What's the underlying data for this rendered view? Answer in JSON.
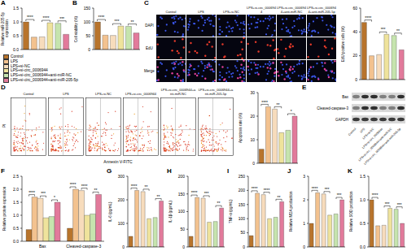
{
  "groups": [
    {
      "name": "Control",
      "color": "#b8742c"
    },
    {
      "name": "LPS",
      "color": "#f3c28f"
    },
    {
      "name": "LPS+si-NC",
      "color": "#f7dcbc"
    },
    {
      "name": "LPS+si-circ_0006944",
      "color": "#efe39c"
    },
    {
      "name": "LPS+si-circ_0006944+anti-miR-NC",
      "color": "#c6e4ae"
    },
    {
      "name": "LPS+si-circ_0006944+anti-miR-205-5p",
      "color": "#e27a9b"
    }
  ],
  "images": {
    "C": {
      "panel": "C",
      "rows": [
        "DAPI",
        "EdU",
        "Merge"
      ]
    },
    "D": {
      "panel": "D",
      "x_label": "Annexin V-FITC",
      "y_label": "PI"
    },
    "E": {
      "panel": "E",
      "bands": [
        "Bax",
        "Cleaved-caspase-3",
        "GAPDH"
      ]
    }
  },
  "chart_data": [
    {
      "panel": "A",
      "type": "bar",
      "y_label": "Relative miR-205-5p expression",
      "values": [
        1.0,
        0.45,
        0.46,
        0.97,
        0.95,
        0.55
      ],
      "ylim": [
        0,
        1.5
      ],
      "yticks": [
        {
          "value": 0,
          "label": "0.0"
        },
        {
          "value": 0.5,
          "label": "0.5"
        },
        {
          "value": 1,
          "label": "1.0"
        },
        {
          "value": 1.5,
          "label": "1.5"
        }
      ],
      "tick_labels": "y",
      "annotations": [
        "****",
        "****",
        "***"
      ]
    },
    {
      "panel": "B",
      "type": "bar",
      "y_label": "Cell viability (%)",
      "values": [
        100,
        52,
        51,
        85,
        84,
        60
      ],
      "ylim": [
        0,
        150
      ],
      "yticks": [
        0,
        50,
        100,
        150
      ],
      "tick_labels": "y",
      "annotations": [
        "****",
        "***",
        "**"
      ]
    },
    {
      "type": "bar",
      "y_label": "EdU positive cells (%)",
      "values": [
        48,
        20,
        21,
        38,
        37,
        25
      ],
      "ylim": [
        0,
        60
      ],
      "yticks": [
        0,
        20,
        40,
        60
      ],
      "tick_labels": "y",
      "annotations": [
        "****",
        "***",
        "**"
      ]
    },
    {
      "type": "bar",
      "y_label": "Apoptosis rate (%)",
      "values": [
        6,
        24,
        23,
        13,
        14,
        20
      ],
      "ylim": [
        0,
        30
      ],
      "yticks": [
        0,
        10,
        20,
        30
      ],
      "tick_labels": "y",
      "annotations": [
        "****",
        "**",
        "*"
      ]
    },
    {
      "panel": "F",
      "type": "bar",
      "y_label": "Relative protein expression",
      "categories": [
        "Bax",
        "Cleaved-caspase-3"
      ],
      "series": [
        {
          "values": [
            0.45,
            0.5
          ]
        },
        {
          "values": [
            1.7,
            2.0
          ]
        },
        {
          "values": [
            1.65,
            1.95
          ]
        },
        {
          "values": [
            0.9,
            1.0
          ]
        },
        {
          "values": [
            0.95,
            1.05
          ]
        },
        {
          "values": [
            1.5,
            1.8
          ]
        }
      ],
      "ylim": [
        0,
        2.5
      ],
      "yticks": [
        {
          "value": 0,
          "label": "0.0"
        },
        {
          "value": 0.5,
          "label": "0.5"
        },
        {
          "value": 1,
          "label": "1.0"
        },
        {
          "value": 1.5,
          "label": "1.5"
        },
        {
          "value": 2,
          "label": "2.0"
        },
        {
          "value": 2.5,
          "label": "2.5"
        }
      ],
      "annotations": [
        "****",
        "***",
        "*",
        "****",
        "****",
        "**"
      ]
    },
    {
      "panel": "G",
      "type": "bar",
      "y_label": "IL-6 (pg/mL)",
      "values": [
        45,
        240,
        235,
        120,
        125,
        195
      ],
      "ylim": [
        0,
        300
      ],
      "yticks": [
        0,
        100,
        200,
        300
      ],
      "tick_labels": "y",
      "annotations": [
        "****",
        "**",
        "**"
      ]
    },
    {
      "panel": "H",
      "type": "bar",
      "y_label": "IL-1β (pg/mL)",
      "values": [
        30,
        140,
        138,
        70,
        72,
        110
      ],
      "ylim": [
        0,
        200
      ],
      "yticks": [
        0,
        50,
        100,
        150,
        200
      ],
      "tick_labels": "y",
      "annotations": [
        "****",
        "***",
        "**"
      ]
    },
    {
      "panel": "I",
      "type": "bar",
      "y_label": "TNF-α (pg/mL)",
      "values": [
        40,
        190,
        185,
        100,
        105,
        160
      ],
      "ylim": [
        0,
        250
      ],
      "yticks": [
        0,
        50,
        100,
        150,
        200,
        250
      ],
      "tick_labels": "y",
      "annotations": [
        "****",
        "****",
        "**"
      ]
    },
    {
      "panel": "J",
      "type": "bar",
      "y_label": "Relative MDA production",
      "values": [
        1,
        2.3,
        2.25,
        1.35,
        1.4,
        2.0
      ],
      "ylim": [
        0,
        3
      ],
      "yticks": [
        0,
        1,
        2,
        3
      ],
      "tick_labels": "y",
      "annotations": [
        "****",
        "***",
        "***"
      ]
    },
    {
      "panel": "K",
      "type": "bar",
      "y_label": "Relative SOD production",
      "values": [
        1,
        0.45,
        0.46,
        0.82,
        0.8,
        0.5
      ],
      "ylim": [
        0,
        1.5
      ],
      "yticks": [
        {
          "value": 0,
          "label": "0.0"
        },
        {
          "value": 0.5,
          "label": "0.5"
        },
        {
          "value": 1,
          "label": "1.0"
        },
        {
          "value": 1.5,
          "label": "1.5"
        }
      ],
      "tick_labels": "y",
      "annotations": [
        "****",
        "***",
        "***"
      ]
    }
  ]
}
